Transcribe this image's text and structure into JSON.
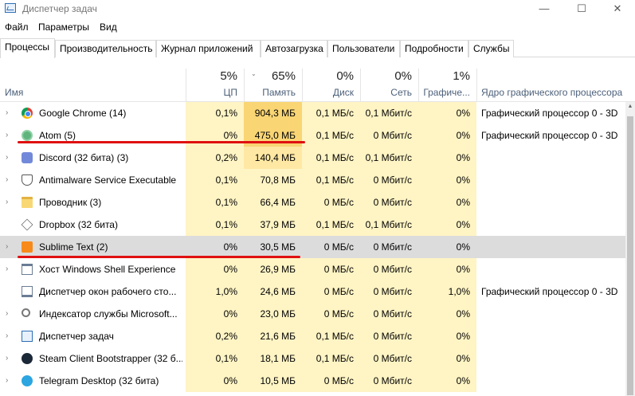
{
  "window": {
    "title": "Диспетчер задач",
    "minimize": "—",
    "maximize": "☐",
    "close": "✕"
  },
  "menu": [
    "Файл",
    "Параметры",
    "Вид"
  ],
  "tabs": [
    "Процессы",
    "Производительность",
    "Журнал приложений",
    "Автозагрузка",
    "Пользователи",
    "Подробности",
    "Службы"
  ],
  "header": {
    "name": "Имя",
    "cpu_pct": "5%",
    "cpu": "ЦП",
    "mem_pct": "65%",
    "mem": "Память",
    "disk_pct": "0%",
    "disk": "Диск",
    "net_pct": "0%",
    "net": "Сеть",
    "gpu_pct": "1%",
    "gpu": "Графиче...",
    "engine": "Ядро графического процессора"
  },
  "colors": {
    "heat_light": "#fff4c4",
    "heat_mid": "#ffe8a3",
    "heat_high": "#f9d574",
    "selected": "#dcdcdc",
    "underline": "#e01010"
  },
  "rows": [
    {
      "name": "Google Chrome (14)",
      "icon": "chrome-icon",
      "cpu": "0,1%",
      "mem": "904,3 МБ",
      "disk": "0,1 МБ/с",
      "net": "0,1 Мбит/с",
      "gpu": "0%",
      "engine": "Графический процессор 0 - 3D",
      "expand": true
    },
    {
      "name": "Atom (5)",
      "icon": "atom-icon",
      "cpu": "0%",
      "mem": "475,0 МБ",
      "disk": "0,1 МБ/с",
      "net": "0 Мбит/с",
      "gpu": "0%",
      "engine": "Графический процессор 0 - 3D",
      "expand": true
    },
    {
      "name": "Discord (32 бита) (3)",
      "icon": "discord-icon",
      "cpu": "0,2%",
      "mem": "140,4 МБ",
      "disk": "0,1 МБ/с",
      "net": "0,1 Мбит/с",
      "gpu": "0%",
      "engine": "",
      "expand": true
    },
    {
      "name": "Antimalware Service Executable",
      "icon": "shield-icon",
      "cpu": "0,1%",
      "mem": "70,8 МБ",
      "disk": "0,1 МБ/с",
      "net": "0 Мбит/с",
      "gpu": "0%",
      "engine": "",
      "expand": true
    },
    {
      "name": "Проводник (3)",
      "icon": "folder-icon",
      "cpu": "0,1%",
      "mem": "66,4 МБ",
      "disk": "0 МБ/с",
      "net": "0 Мбит/с",
      "gpu": "0%",
      "engine": "",
      "expand": true
    },
    {
      "name": "Dropbox (32 бита)",
      "icon": "dropbox-icon",
      "cpu": "0,1%",
      "mem": "37,9 МБ",
      "disk": "0,1 МБ/с",
      "net": "0,1 Мбит/с",
      "gpu": "0%",
      "engine": "",
      "expand": false
    },
    {
      "name": "Sublime Text (2)",
      "icon": "sublime-icon",
      "cpu": "0%",
      "mem": "30,5 МБ",
      "disk": "0 МБ/с",
      "net": "0 Мбит/с",
      "gpu": "0%",
      "engine": "",
      "expand": true
    },
    {
      "name": "Хост Windows Shell Experience",
      "icon": "window-icon",
      "cpu": "0%",
      "mem": "26,9 МБ",
      "disk": "0 МБ/с",
      "net": "0 Мбит/с",
      "gpu": "0%",
      "engine": "",
      "expand": true
    },
    {
      "name": "Диспетчер окон рабочего сто...",
      "icon": "monitor-icon",
      "cpu": "1,0%",
      "mem": "24,6 МБ",
      "disk": "0 МБ/с",
      "net": "0 Мбит/с",
      "gpu": "1,0%",
      "engine": "Графический процессор 0 - 3D",
      "expand": false
    },
    {
      "name": "Индексатор службы Microsoft...",
      "icon": "search-icon",
      "cpu": "0%",
      "mem": "23,0 МБ",
      "disk": "0 МБ/с",
      "net": "0 Мбит/с",
      "gpu": "0%",
      "engine": "",
      "expand": true
    },
    {
      "name": "Диспетчер задач",
      "icon": "task-manager-icon",
      "cpu": "0,2%",
      "mem": "21,6 МБ",
      "disk": "0,1 МБ/с",
      "net": "0 Мбит/с",
      "gpu": "0%",
      "engine": "",
      "expand": true
    },
    {
      "name": "Steam Client Bootstrapper (32 б...",
      "icon": "steam-icon",
      "cpu": "0,1%",
      "mem": "18,1 МБ",
      "disk": "0,1 МБ/с",
      "net": "0 Мбит/с",
      "gpu": "0%",
      "engine": "",
      "expand": true
    },
    {
      "name": "Telegram Desktop (32 бита)",
      "icon": "telegram-icon",
      "cpu": "0%",
      "mem": "10,5 МБ",
      "disk": "0 МБ/с",
      "net": "0 Мбит/с",
      "gpu": "0%",
      "engine": "",
      "expand": true
    }
  ]
}
